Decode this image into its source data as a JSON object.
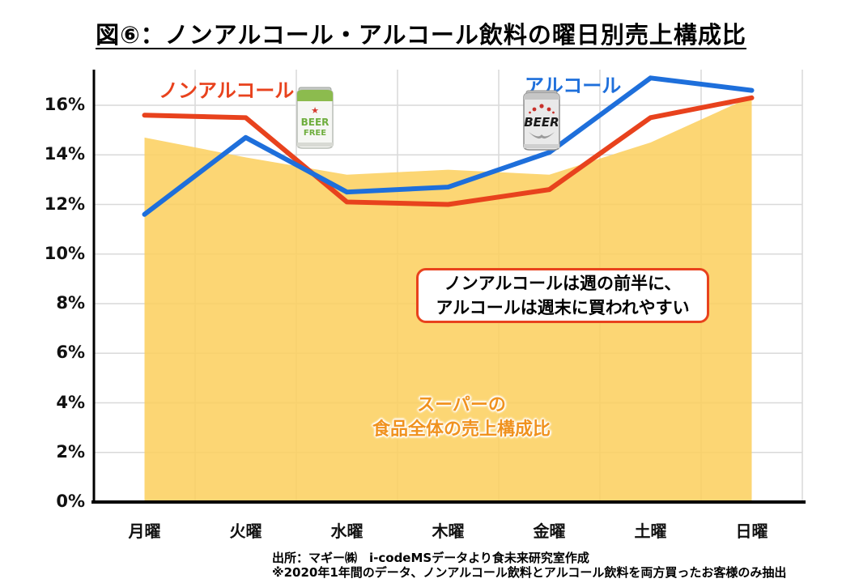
{
  "title": "図⑥：ノンアルコール・アルコール飲料の曜日別売上構成比",
  "legend": {
    "non_alcohol": "ノンアルコール",
    "alcohol": "アルコール"
  },
  "icons": {
    "beer_free_can": {
      "line1": "BEER",
      "line2": "FREE"
    },
    "beer_can": {
      "label": "BEER"
    }
  },
  "annotation": {
    "line1": "ノンアルコールは週の前半に、",
    "line2": "アルコールは週末に買われやすい"
  },
  "area_label": {
    "line1": "スーパーの",
    "line2": "食品全体の売上構成比"
  },
  "footer": {
    "line1": "出所：マギー㈱　i-codeMSデータより食未来研究室作成",
    "line2": "※2020年1年間のデータ、ノンアルコール飲料とアルコール飲料を両方買ったお客様のみ抽出"
  },
  "colors": {
    "non_alcohol": "#E8421D",
    "alcohol": "#1E6FDB",
    "area_fill": "#FBCF5C",
    "area_opacity": 0.85,
    "area_label_text": "#F0921E",
    "grid": "#D9D9D9",
    "axis": "#000000"
  },
  "chart_data": {
    "type": "line",
    "title": "図⑥：ノンアルコール・アルコール飲料の曜日別売上構成比",
    "categories": [
      "月曜",
      "火曜",
      "水曜",
      "木曜",
      "金曜",
      "土曜",
      "日曜"
    ],
    "y_tick_values": [
      0,
      2,
      4,
      6,
      8,
      10,
      12,
      14,
      16
    ],
    "y_tick_labels": [
      "0%",
      "2%",
      "4%",
      "6%",
      "8%",
      "10%",
      "12%",
      "14%",
      "16%"
    ],
    "ylim": [
      0,
      17.4
    ],
    "grid": true,
    "series": [
      {
        "name": "スーパーの食品全体の売上構成比",
        "type": "area",
        "values": [
          14.7,
          13.9,
          13.2,
          13.4,
          13.2,
          14.5,
          16.35
        ]
      },
      {
        "name": "ノンアルコール",
        "type": "line",
        "values": [
          15.6,
          15.5,
          12.1,
          12.0,
          12.6,
          15.5,
          16.3
        ]
      },
      {
        "name": "アルコール",
        "type": "line",
        "values": [
          11.6,
          14.7,
          12.5,
          12.7,
          14.1,
          17.1,
          16.6
        ]
      }
    ]
  }
}
